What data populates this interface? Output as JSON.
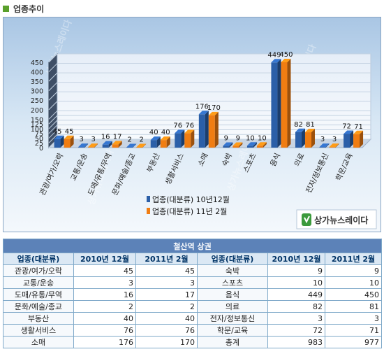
{
  "header": {
    "title": "업종추이"
  },
  "chart_data": {
    "type": "bar",
    "categories": [
      "관광/여가/오락",
      "교통/운송",
      "도매/유통/무역",
      "문화/예술/종교",
      "부동산",
      "생활서비스",
      "소매",
      "숙박",
      "스포츠",
      "음식",
      "의료",
      "전자/정보통신",
      "학문/교육"
    ],
    "series": [
      {
        "name": "업종(대분류) 10년12월",
        "values": [
          45,
          3,
          16,
          2,
          40,
          76,
          176,
          9,
          10,
          449,
          82,
          3,
          72
        ],
        "color": "#2b5fa8"
      },
      {
        "name": "업종(대분류) 11년 2월",
        "values": [
          45,
          3,
          17,
          2,
          40,
          76,
          170,
          9,
          10,
          450,
          81,
          3,
          71
        ],
        "color": "#f07d12"
      }
    ],
    "yticks": [
      0,
      25,
      50,
      75,
      100,
      125,
      150,
      200,
      250,
      300,
      350,
      400,
      450
    ],
    "ylim": [
      0,
      450
    ],
    "legend_position": "bottom-right",
    "watermark": "상가뉴스레이다",
    "logo_text": "상가뉴스레이다"
  },
  "table": {
    "caption": "철산역 상권",
    "headers": [
      "업종(대분류)",
      "2010년 12월",
      "2011년 2월",
      "업종(대분류)",
      "2010년 12월",
      "2011년 2월"
    ],
    "rows": [
      [
        "관광/여가/오락",
        "45",
        "45",
        "숙박",
        "9",
        "9"
      ],
      [
        "교통/운송",
        "3",
        "3",
        "스포츠",
        "10",
        "10"
      ],
      [
        "도매/유통/무역",
        "16",
        "17",
        "음식",
        "449",
        "450"
      ],
      [
        "문화/예술/종교",
        "2",
        "2",
        "의료",
        "82",
        "81"
      ],
      [
        "부동산",
        "40",
        "40",
        "전자/정보통신",
        "3",
        "3"
      ],
      [
        "생활서비스",
        "76",
        "76",
        "학문/교육",
        "72",
        "71"
      ],
      [
        "소매",
        "176",
        "170",
        "총계",
        "983",
        "977"
      ]
    ]
  }
}
